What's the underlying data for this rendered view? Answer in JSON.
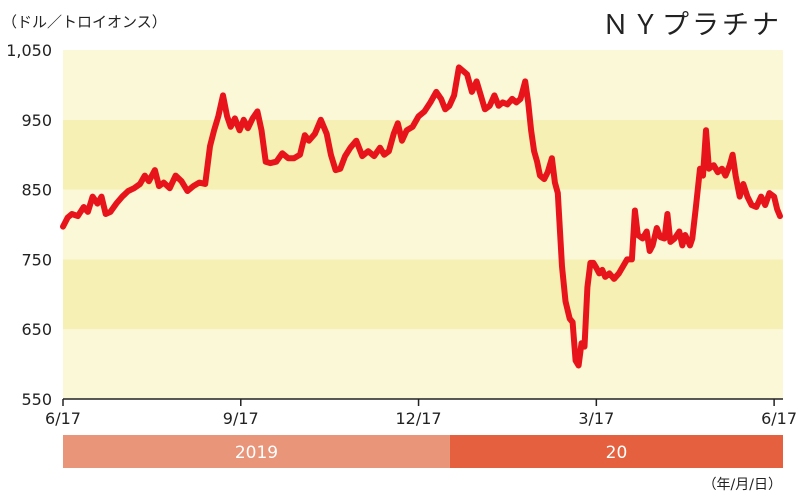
{
  "chart_data": {
    "type": "line",
    "title": "ＮＹプラチナ",
    "unit_label": "（ドル／トロイオンス）",
    "date_format_note": "（年/月/日）",
    "ylim": [
      550,
      1050
    ],
    "yticks": [
      "550",
      "650",
      "750",
      "850",
      "950",
      "1,050"
    ],
    "ytick_values": [
      550,
      650,
      750,
      850,
      950,
      1050
    ],
    "xticks": [
      {
        "label": "6/17",
        "x": 0
      },
      {
        "label": "9/17",
        "x": 3
      },
      {
        "label": "12/17",
        "x": 6
      },
      {
        "label": "3/17",
        "x": 9
      },
      {
        "label": "6/17",
        "x": 12
      }
    ],
    "xlim": [
      0,
      12.15
    ],
    "year_bands": [
      {
        "label": "2019",
        "from": 0,
        "to": 6.53,
        "color": "#e8957a"
      },
      {
        "label": "20",
        "from": 6.53,
        "to": 12.15,
        "color": "#e4603e"
      }
    ],
    "colors": {
      "line": "#e8141c",
      "band_dark": "#f6f0b4",
      "band_light": "#fbf8d8",
      "axis": "#222222"
    },
    "series": [
      {
        "values": [
          [
            0.0,
            797
          ],
          [
            0.08,
            810
          ],
          [
            0.15,
            815
          ],
          [
            0.25,
            812
          ],
          [
            0.35,
            825
          ],
          [
            0.42,
            818
          ],
          [
            0.5,
            840
          ],
          [
            0.58,
            830
          ],
          [
            0.65,
            840
          ],
          [
            0.72,
            815
          ],
          [
            0.8,
            818
          ],
          [
            0.9,
            830
          ],
          [
            1.0,
            840
          ],
          [
            1.1,
            848
          ],
          [
            1.2,
            852
          ],
          [
            1.3,
            858
          ],
          [
            1.38,
            870
          ],
          [
            1.45,
            862
          ],
          [
            1.55,
            878
          ],
          [
            1.62,
            855
          ],
          [
            1.7,
            860
          ],
          [
            1.8,
            852
          ],
          [
            1.9,
            870
          ],
          [
            2.0,
            862
          ],
          [
            2.1,
            848
          ],
          [
            2.2,
            855
          ],
          [
            2.3,
            860
          ],
          [
            2.4,
            858
          ],
          [
            2.48,
            912
          ],
          [
            2.55,
            935
          ],
          [
            2.62,
            955
          ],
          [
            2.7,
            985
          ],
          [
            2.77,
            955
          ],
          [
            2.83,
            940
          ],
          [
            2.9,
            952
          ],
          [
            2.98,
            935
          ],
          [
            3.05,
            950
          ],
          [
            3.12,
            938
          ],
          [
            3.2,
            952
          ],
          [
            3.28,
            962
          ],
          [
            3.35,
            935
          ],
          [
            3.42,
            890
          ],
          [
            3.5,
            888
          ],
          [
            3.6,
            890
          ],
          [
            3.7,
            902
          ],
          [
            3.8,
            895
          ],
          [
            3.9,
            895
          ],
          [
            4.0,
            900
          ],
          [
            4.08,
            928
          ],
          [
            4.15,
            920
          ],
          [
            4.25,
            930
          ],
          [
            4.35,
            950
          ],
          [
            4.45,
            930
          ],
          [
            4.52,
            900
          ],
          [
            4.6,
            878
          ],
          [
            4.68,
            880
          ],
          [
            4.76,
            898
          ],
          [
            4.85,
            910
          ],
          [
            4.95,
            920
          ],
          [
            5.05,
            898
          ],
          [
            5.15,
            905
          ],
          [
            5.25,
            898
          ],
          [
            5.35,
            910
          ],
          [
            5.42,
            900
          ],
          [
            5.5,
            905
          ],
          [
            5.58,
            930
          ],
          [
            5.65,
            945
          ],
          [
            5.72,
            920
          ],
          [
            5.8,
            935
          ],
          [
            5.9,
            940
          ],
          [
            6.0,
            955
          ],
          [
            6.1,
            962
          ],
          [
            6.2,
            975
          ],
          [
            6.3,
            990
          ],
          [
            6.38,
            980
          ],
          [
            6.45,
            965
          ],
          [
            6.52,
            970
          ],
          [
            6.6,
            985
          ],
          [
            6.68,
            1025
          ],
          [
            6.75,
            1020
          ],
          [
            6.82,
            1015
          ],
          [
            6.9,
            990
          ],
          [
            6.98,
            1005
          ],
          [
            7.05,
            985
          ],
          [
            7.12,
            965
          ],
          [
            7.2,
            970
          ],
          [
            7.28,
            985
          ],
          [
            7.35,
            970
          ],
          [
            7.42,
            975
          ],
          [
            7.5,
            972
          ],
          [
            7.58,
            980
          ],
          [
            7.65,
            975
          ],
          [
            7.72,
            980
          ],
          [
            7.8,
            1005
          ],
          [
            7.85,
            975
          ],
          [
            7.9,
            935
          ],
          [
            7.95,
            905
          ],
          [
            8.0,
            890
          ],
          [
            8.05,
            870
          ],
          [
            8.12,
            865
          ],
          [
            8.18,
            875
          ],
          [
            8.25,
            895
          ],
          [
            8.3,
            860
          ],
          [
            8.35,
            845
          ],
          [
            8.42,
            740
          ],
          [
            8.48,
            690
          ],
          [
            8.55,
            665
          ],
          [
            8.6,
            660
          ],
          [
            8.65,
            605
          ],
          [
            8.7,
            598
          ],
          [
            8.75,
            630
          ],
          [
            8.8,
            625
          ],
          [
            8.85,
            710
          ],
          [
            8.9,
            745
          ],
          [
            8.95,
            745
          ],
          [
            9.0,
            738
          ],
          [
            9.05,
            730
          ],
          [
            9.1,
            735
          ],
          [
            9.15,
            725
          ],
          [
            9.22,
            730
          ],
          [
            9.3,
            722
          ],
          [
            9.38,
            730
          ],
          [
            9.45,
            740
          ],
          [
            9.52,
            750
          ],
          [
            9.6,
            750
          ],
          [
            9.65,
            820
          ],
          [
            9.7,
            785
          ],
          [
            9.78,
            780
          ],
          [
            9.85,
            790
          ],
          [
            9.9,
            762
          ],
          [
            9.95,
            770
          ],
          [
            10.02,
            795
          ],
          [
            10.08,
            782
          ],
          [
            10.15,
            780
          ],
          [
            10.2,
            815
          ],
          [
            10.25,
            775
          ],
          [
            10.32,
            780
          ],
          [
            10.4,
            790
          ],
          [
            10.45,
            770
          ],
          [
            10.5,
            785
          ],
          [
            10.58,
            770
          ],
          [
            10.62,
            780
          ],
          [
            10.68,
            825
          ],
          [
            10.75,
            880
          ],
          [
            10.8,
            870
          ],
          [
            10.85,
            935
          ],
          [
            10.9,
            880
          ],
          [
            10.98,
            885
          ],
          [
            11.05,
            875
          ],
          [
            11.12,
            880
          ],
          [
            11.18,
            870
          ],
          [
            11.25,
            885
          ],
          [
            11.3,
            900
          ],
          [
            11.35,
            870
          ],
          [
            11.42,
            840
          ],
          [
            11.48,
            858
          ],
          [
            11.55,
            840
          ],
          [
            11.62,
            828
          ],
          [
            11.7,
            825
          ],
          [
            11.78,
            840
          ],
          [
            11.85,
            828
          ],
          [
            11.92,
            845
          ],
          [
            12.0,
            840
          ],
          [
            12.05,
            822
          ],
          [
            12.1,
            812
          ]
        ]
      }
    ]
  }
}
